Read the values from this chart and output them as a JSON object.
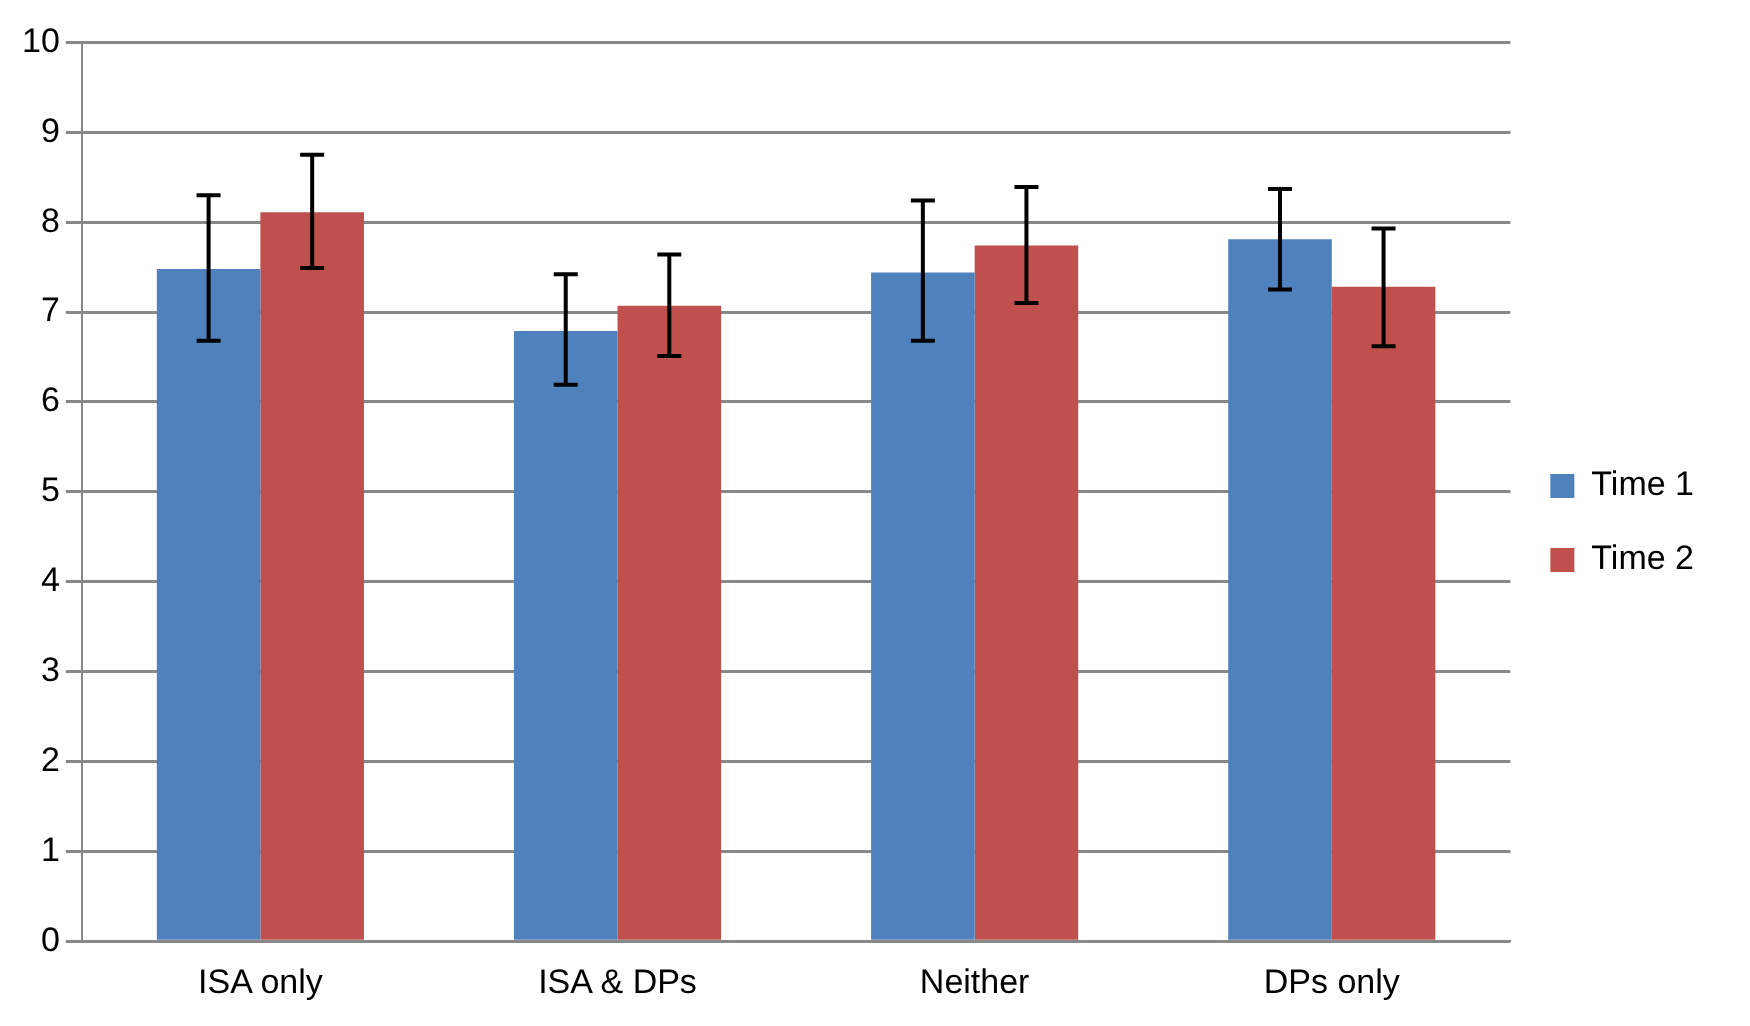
{
  "chart_data": {
    "type": "bar",
    "categories": [
      "ISA only",
      "ISA & DPs",
      "Neither",
      "DPs only"
    ],
    "series": [
      {
        "name": "Time 1",
        "color": "#4f81bd",
        "values": [
          7.48,
          6.79,
          7.44,
          7.81
        ],
        "errors": [
          [
            6.68,
            8.3
          ],
          [
            6.19,
            7.42
          ],
          [
            6.68,
            8.24
          ],
          [
            7.25,
            8.37
          ]
        ]
      },
      {
        "name": "Time 2",
        "color": "#c0504d",
        "values": [
          8.11,
          7.07,
          7.74,
          7.28
        ],
        "errors": [
          [
            7.49,
            8.75
          ],
          [
            6.51,
            7.64
          ],
          [
            7.1,
            8.39
          ],
          [
            6.62,
            7.93
          ]
        ]
      }
    ],
    "ylim": [
      0,
      10
    ],
    "yticks": [
      0,
      1,
      2,
      3,
      4,
      5,
      6,
      7,
      8,
      9,
      10
    ],
    "grid": "y",
    "legend": "right"
  }
}
